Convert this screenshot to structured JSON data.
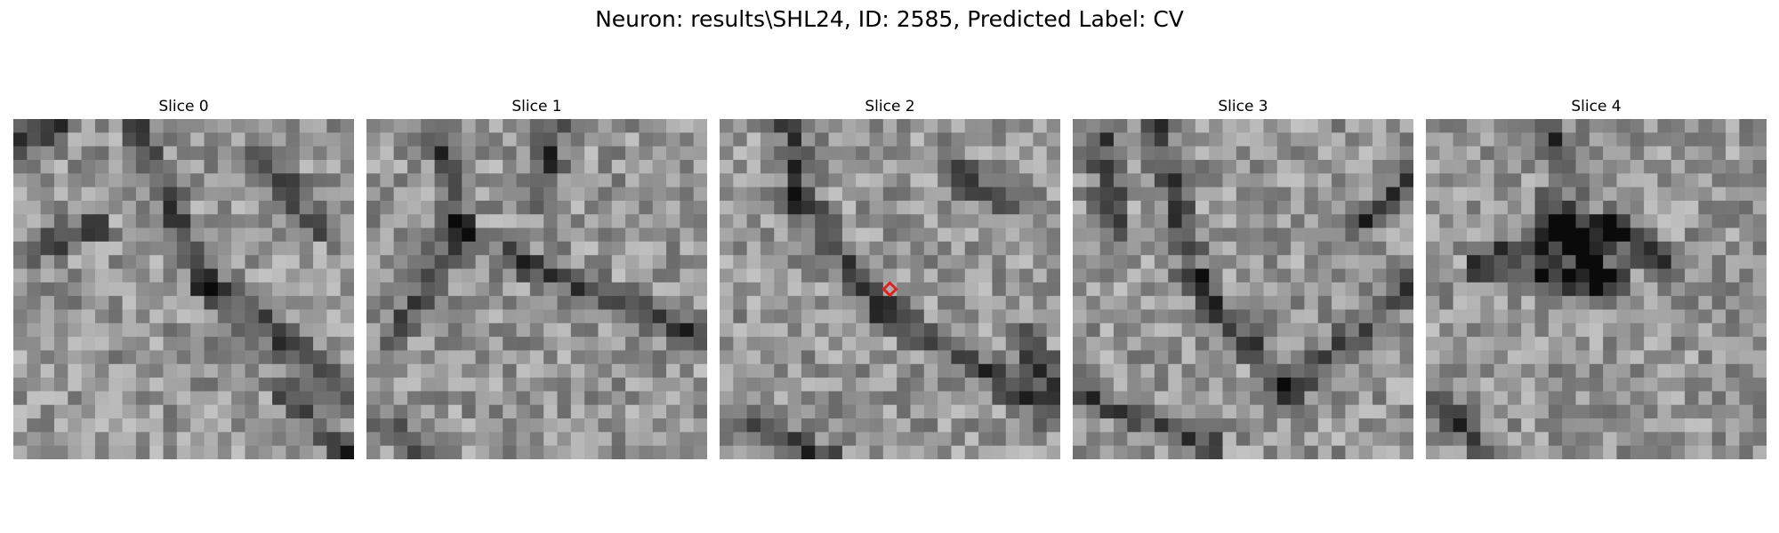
{
  "figure": {
    "title": "Neuron: results\\SHL24, ID: 2585, Predicted Label: CV"
  },
  "slices": [
    {
      "title": "Slice 0"
    },
    {
      "title": "Slice 1"
    },
    {
      "title": "Slice 2"
    },
    {
      "title": "Slice 3"
    },
    {
      "title": "Slice 4"
    }
  ],
  "marker": {
    "slice_index": 2,
    "shape": "diamond",
    "color": "#e02020"
  },
  "colormap": "gray"
}
